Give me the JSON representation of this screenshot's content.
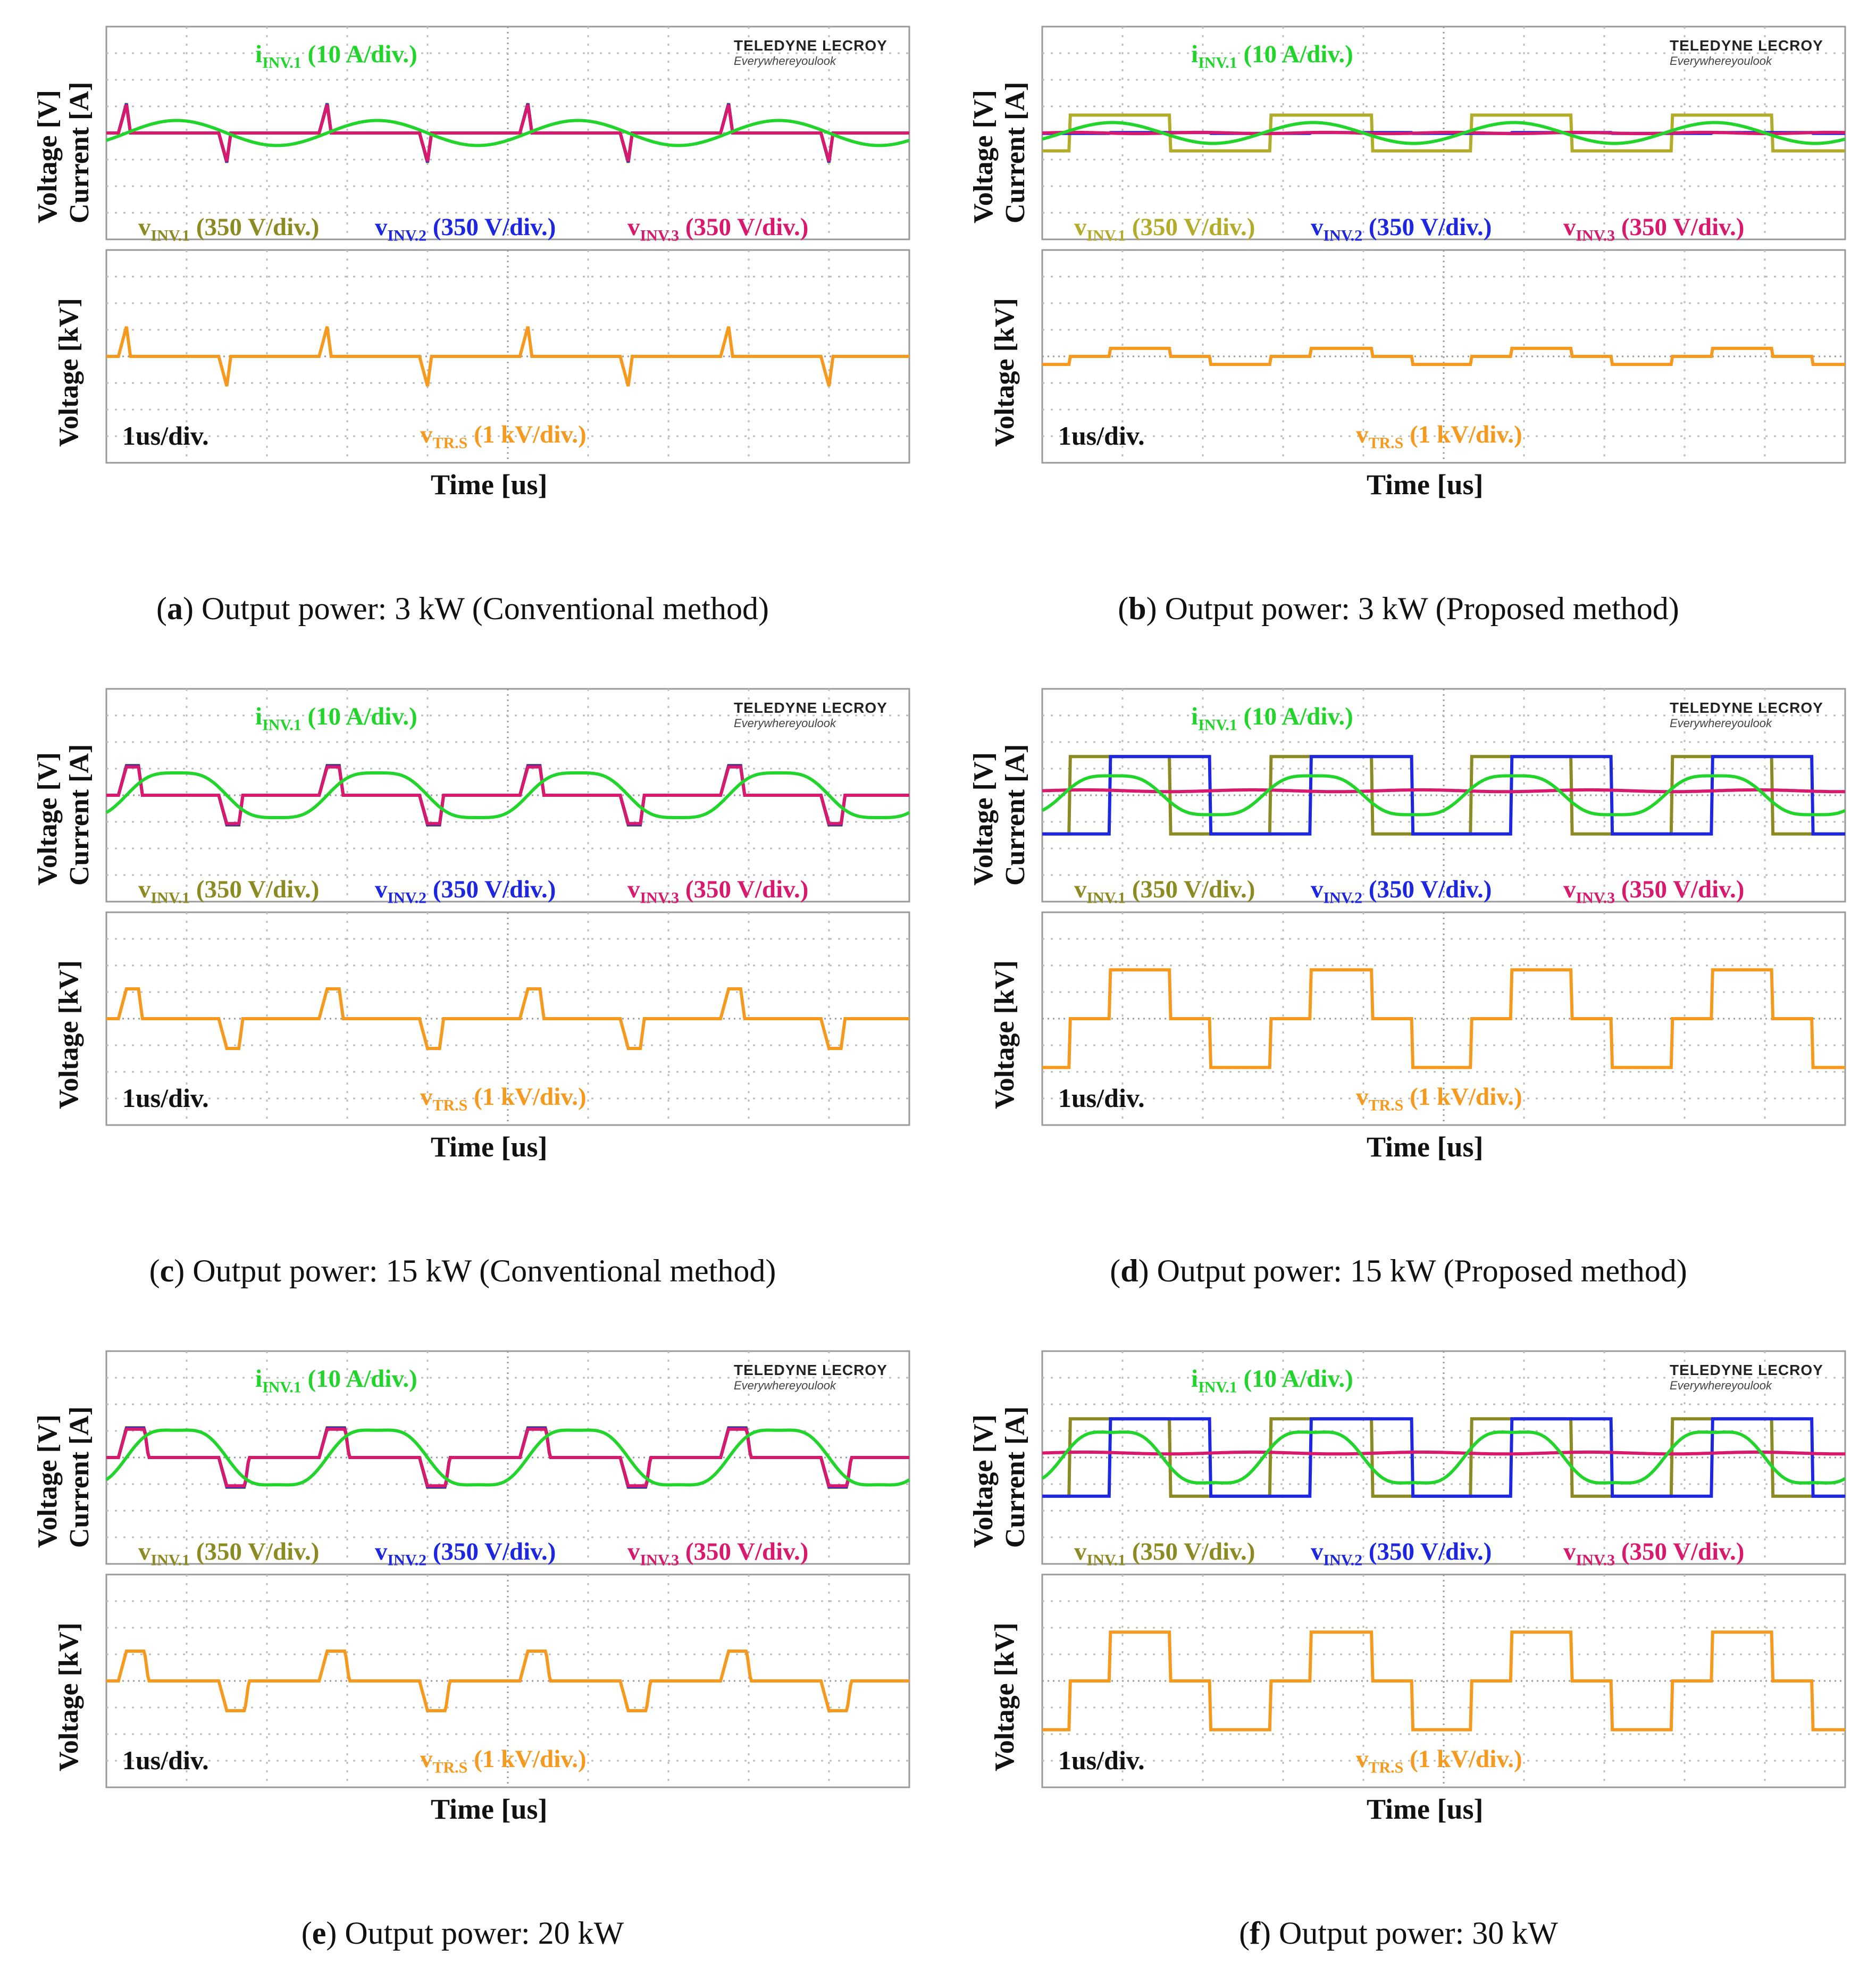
{
  "chart_data": [
    {
      "id": "a",
      "type": "line",
      "caption_letter": "a",
      "caption_text": "Output power: 3 kW (Conventional method)",
      "top_ylabel_voltage": "Voltage [V]",
      "top_ylabel_current": "Current [A]",
      "bottom_ylabel": "Voltage [kV]",
      "xlabel": "Time [us]",
      "logo": {
        "line1": "TELEDYNE LECROY",
        "line2": "Everywhereyoulook"
      },
      "time_scale": "1us/div.",
      "x_divisions": 10,
      "y_divisions": 8,
      "mode": "conv",
      "transfer": 0.0,
      "vlevel": 1.0,
      "series": [
        {
          "name": "vINV.1",
          "color": "#8c8a22",
          "label_main": "v",
          "label_sub": "INV.1",
          "label_scale": " (350 V/div.)"
        },
        {
          "name": "vINV.2",
          "color": "#1d27e0",
          "label_main": "v",
          "label_sub": "INV.2",
          "label_scale": " (350 V/div.)"
        },
        {
          "name": "vINV.3",
          "color": "#d81a6e",
          "label_main": "v",
          "label_sub": "INV.3",
          "label_scale": " (350 V/div.)"
        },
        {
          "name": "iINV.1",
          "color": "#22d42b",
          "label_main": "i",
          "label_sub": "INV.1",
          "label_scale": " (10 A/div.)"
        },
        {
          "name": "vTR.S",
          "color": "#f59a1f",
          "label_main": "v",
          "label_sub": "TR.S",
          "label_scale": " (1 kV/div.)"
        }
      ]
    },
    {
      "id": "b",
      "type": "line",
      "caption_letter": "b",
      "caption_text": "Output power: 3 kW (Proposed method)",
      "top_ylabel_voltage": "Voltage [V]",
      "top_ylabel_current": "Current [A]",
      "bottom_ylabel": "Voltage [kV]",
      "xlabel": "Time [us]",
      "logo": {
        "line1": "TELEDYNE LECROY",
        "line2": "Everywhereyoulook"
      },
      "time_scale": "1us/div.",
      "x_divisions": 10,
      "y_divisions": 8,
      "mode": "prop",
      "transfer": 0.0,
      "vlevel": 0.6,
      "series": [
        {
          "name": "vINV.1",
          "color": "#b3ac2a",
          "label_main": "v",
          "label_sub": "INV.1",
          "label_scale": " (350 V/div.)"
        },
        {
          "name": "vINV.2",
          "color": "#1d27e0",
          "label_main": "v",
          "label_sub": "INV.2",
          "label_scale": " (350 V/div.)"
        },
        {
          "name": "vINV.3",
          "color": "#d81a6e",
          "label_main": "v",
          "label_sub": "INV.3",
          "label_scale": " (350 V/div.)"
        },
        {
          "name": "iINV.1",
          "color": "#22d42b",
          "label_main": "i",
          "label_sub": "INV.1",
          "label_scale": " (10 A/div.)"
        },
        {
          "name": "vTR.S",
          "color": "#f59a1f",
          "label_main": "v",
          "label_sub": "TR.S",
          "label_scale": " (1 kV/div.)"
        }
      ]
    },
    {
      "id": "c",
      "type": "line",
      "caption_letter": "c",
      "caption_text": "Output power: 15 kW (Conventional method)",
      "top_ylabel_voltage": "Voltage [V]",
      "top_ylabel_current": "Current [A]",
      "bottom_ylabel": "Voltage [kV]",
      "xlabel": "Time [us]",
      "logo": {
        "line1": "TELEDYNE LECROY",
        "line2": "Everywhereyoulook"
      },
      "time_scale": "1us/div.",
      "x_divisions": 10,
      "y_divisions": 8,
      "mode": "conv",
      "transfer": 0.5,
      "vlevel": 1.0,
      "series": [
        {
          "name": "vINV.1",
          "color": "#8c8a22",
          "label_main": "v",
          "label_sub": "INV.1",
          "label_scale": " (350 V/div.)"
        },
        {
          "name": "vINV.2",
          "color": "#1d27e0",
          "label_main": "v",
          "label_sub": "INV.2",
          "label_scale": " (350 V/div.)"
        },
        {
          "name": "vINV.3",
          "color": "#d81a6e",
          "label_main": "v",
          "label_sub": "INV.3",
          "label_scale": " (350 V/div.)"
        },
        {
          "name": "iINV.1",
          "color": "#22d42b",
          "label_main": "i",
          "label_sub": "INV.1",
          "label_scale": " (10 A/div.)"
        },
        {
          "name": "vTR.S",
          "color": "#f59a1f",
          "label_main": "v",
          "label_sub": "TR.S",
          "label_scale": " (1 kV/div.)"
        }
      ]
    },
    {
      "id": "d",
      "type": "line",
      "caption_letter": "d",
      "caption_text": "Output power: 15 kW (Proposed method)",
      "top_ylabel_voltage": "Voltage [V]",
      "top_ylabel_current": "Current [A]",
      "bottom_ylabel": "Voltage [kV]",
      "xlabel": "Time [us]",
      "logo": {
        "line1": "TELEDYNE LECROY",
        "line2": "Everywhereyoulook"
      },
      "time_scale": "1us/div.",
      "x_divisions": 10,
      "y_divisions": 8,
      "mode": "prop",
      "transfer": 0.55,
      "vlevel": 1.3,
      "series": [
        {
          "name": "vINV.1",
          "color": "#8c8a22",
          "label_main": "v",
          "label_sub": "INV.1",
          "label_scale": " (350 V/div.)"
        },
        {
          "name": "vINV.2",
          "color": "#1d27e0",
          "label_main": "v",
          "label_sub": "INV.2",
          "label_scale": " (350 V/div.)"
        },
        {
          "name": "vINV.3",
          "color": "#d81a6e",
          "label_main": "v",
          "label_sub": "INV.3",
          "label_scale": " (350 V/div.)"
        },
        {
          "name": "iINV.1",
          "color": "#22d42b",
          "label_main": "i",
          "label_sub": "INV.1",
          "label_scale": " (10 A/div.)"
        },
        {
          "name": "vTR.S",
          "color": "#f59a1f",
          "label_main": "v",
          "label_sub": "TR.S",
          "label_scale": " (1 kV/div.)"
        }
      ]
    },
    {
      "id": "e",
      "type": "line",
      "caption_letter": "e",
      "caption_text": "Output power: 20 kW",
      "top_ylabel_voltage": "Voltage [V]",
      "top_ylabel_current": "Current [A]",
      "bottom_ylabel": "Voltage [kV]",
      "xlabel": "Time [us]",
      "logo": {
        "line1": "TELEDYNE LECROY",
        "line2": "Everywhereyoulook"
      },
      "time_scale": "1us/div.",
      "x_divisions": 10,
      "y_divisions": 8,
      "mode": "conv",
      "transfer": 0.75,
      "vlevel": 1.0,
      "series": [
        {
          "name": "vINV.1",
          "color": "#8c8a22",
          "label_main": "v",
          "label_sub": "INV.1",
          "label_scale": " (350 V/div.)"
        },
        {
          "name": "vINV.2",
          "color": "#1d27e0",
          "label_main": "v",
          "label_sub": "INV.2",
          "label_scale": " (350 V/div.)"
        },
        {
          "name": "vINV.3",
          "color": "#d81a6e",
          "label_main": "v",
          "label_sub": "INV.3",
          "label_scale": " (350 V/div.)"
        },
        {
          "name": "iINV.1",
          "color": "#22d42b",
          "label_main": "i",
          "label_sub": "INV.1",
          "label_scale": " (10 A/div.)"
        },
        {
          "name": "vTR.S",
          "color": "#f59a1f",
          "label_main": "v",
          "label_sub": "TR.S",
          "label_scale": " (1 kV/div.)"
        }
      ]
    },
    {
      "id": "f",
      "type": "line",
      "caption_letter": "f",
      "caption_text": "Output power: 30 kW",
      "top_ylabel_voltage": "Voltage [V]",
      "top_ylabel_current": "Current [A]",
      "bottom_ylabel": "Voltage [kV]",
      "xlabel": "Time [us]",
      "logo": {
        "line1": "TELEDYNE LECROY",
        "line2": "Everywhereyoulook"
      },
      "time_scale": "1us/div.",
      "x_divisions": 10,
      "y_divisions": 8,
      "mode": "prop",
      "transfer": 0.9,
      "vlevel": 1.3,
      "series": [
        {
          "name": "vINV.1",
          "color": "#8c8a22",
          "label_main": "v",
          "label_sub": "INV.1",
          "label_scale": " (350 V/div.)"
        },
        {
          "name": "vINV.2",
          "color": "#1d27e0",
          "label_main": "v",
          "label_sub": "INV.2",
          "label_scale": " (350 V/div.)"
        },
        {
          "name": "vINV.3",
          "color": "#d81a6e",
          "label_main": "v",
          "label_sub": "INV.3",
          "label_scale": " (350 V/div.)"
        },
        {
          "name": "iINV.1",
          "color": "#22d42b",
          "label_main": "i",
          "label_sub": "INV.1",
          "label_scale": " (10 A/div.)"
        },
        {
          "name": "vTR.S",
          "color": "#f59a1f",
          "label_main": "v",
          "label_sub": "TR.S",
          "label_scale": " (1 kV/div.)"
        }
      ]
    }
  ]
}
